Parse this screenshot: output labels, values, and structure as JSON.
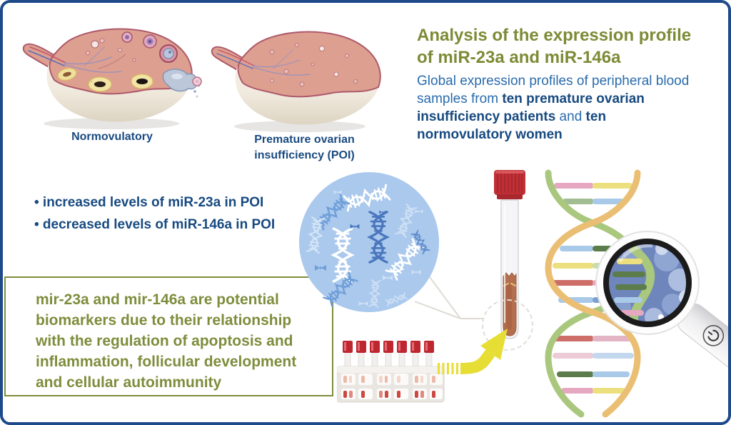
{
  "header": {
    "title": [
      "Analysis of the expression profile",
      "of miR-23a and miR-146a"
    ],
    "subtitle_segments": [
      {
        "text": "Global expression profiles of peripheral blood samples from ",
        "bold": false
      },
      {
        "text": "ten premature ovarian insufficiency patients",
        "bold": true
      },
      {
        "text": " and ",
        "bold": false
      },
      {
        "text": "ten normovulatory women",
        "bold": true
      }
    ]
  },
  "ovary_section": {
    "normal_label": "Normovulatory",
    "poi_label": [
      "Premature ovarian",
      "insufficiency (POI)"
    ]
  },
  "findings": {
    "items": [
      "• increased levels of miR-23a in POI",
      "• decreased levels of miR-146a in POI"
    ]
  },
  "conclusion": {
    "text": "mir-23a and mir-146a are potential biomarkers due to their relationship with the regulation of apoptosis and inflammation, follicular development and cellular autoimmunity"
  },
  "colors": {
    "frame_blue": "#1e4a8c",
    "accent_green": "#7c8b35",
    "text_blue": "#2a6cad",
    "text_navy": "#174a80",
    "box_green": "#7e8d3c",
    "circle_blue": "#aac9ed",
    "arrow_yellow": "#e7de35",
    "tube_cap_red": "#c12f36",
    "blood": "#b4704e",
    "helix_green": "#a9c77d",
    "helix_orange": "#eabf74"
  },
  "icons": {
    "normal_ovary": "ovary-normovulatory-illustration",
    "poi_ovary": "ovary-poi-illustration",
    "dna_circle": "dna-sample-circle",
    "blood_tube": "blood-collection-tube",
    "pcr_strip": "pcr-tube-strip",
    "arrow": "process-arrow",
    "helix": "dna-double-helix",
    "magnifier": "magnifying-glass"
  }
}
